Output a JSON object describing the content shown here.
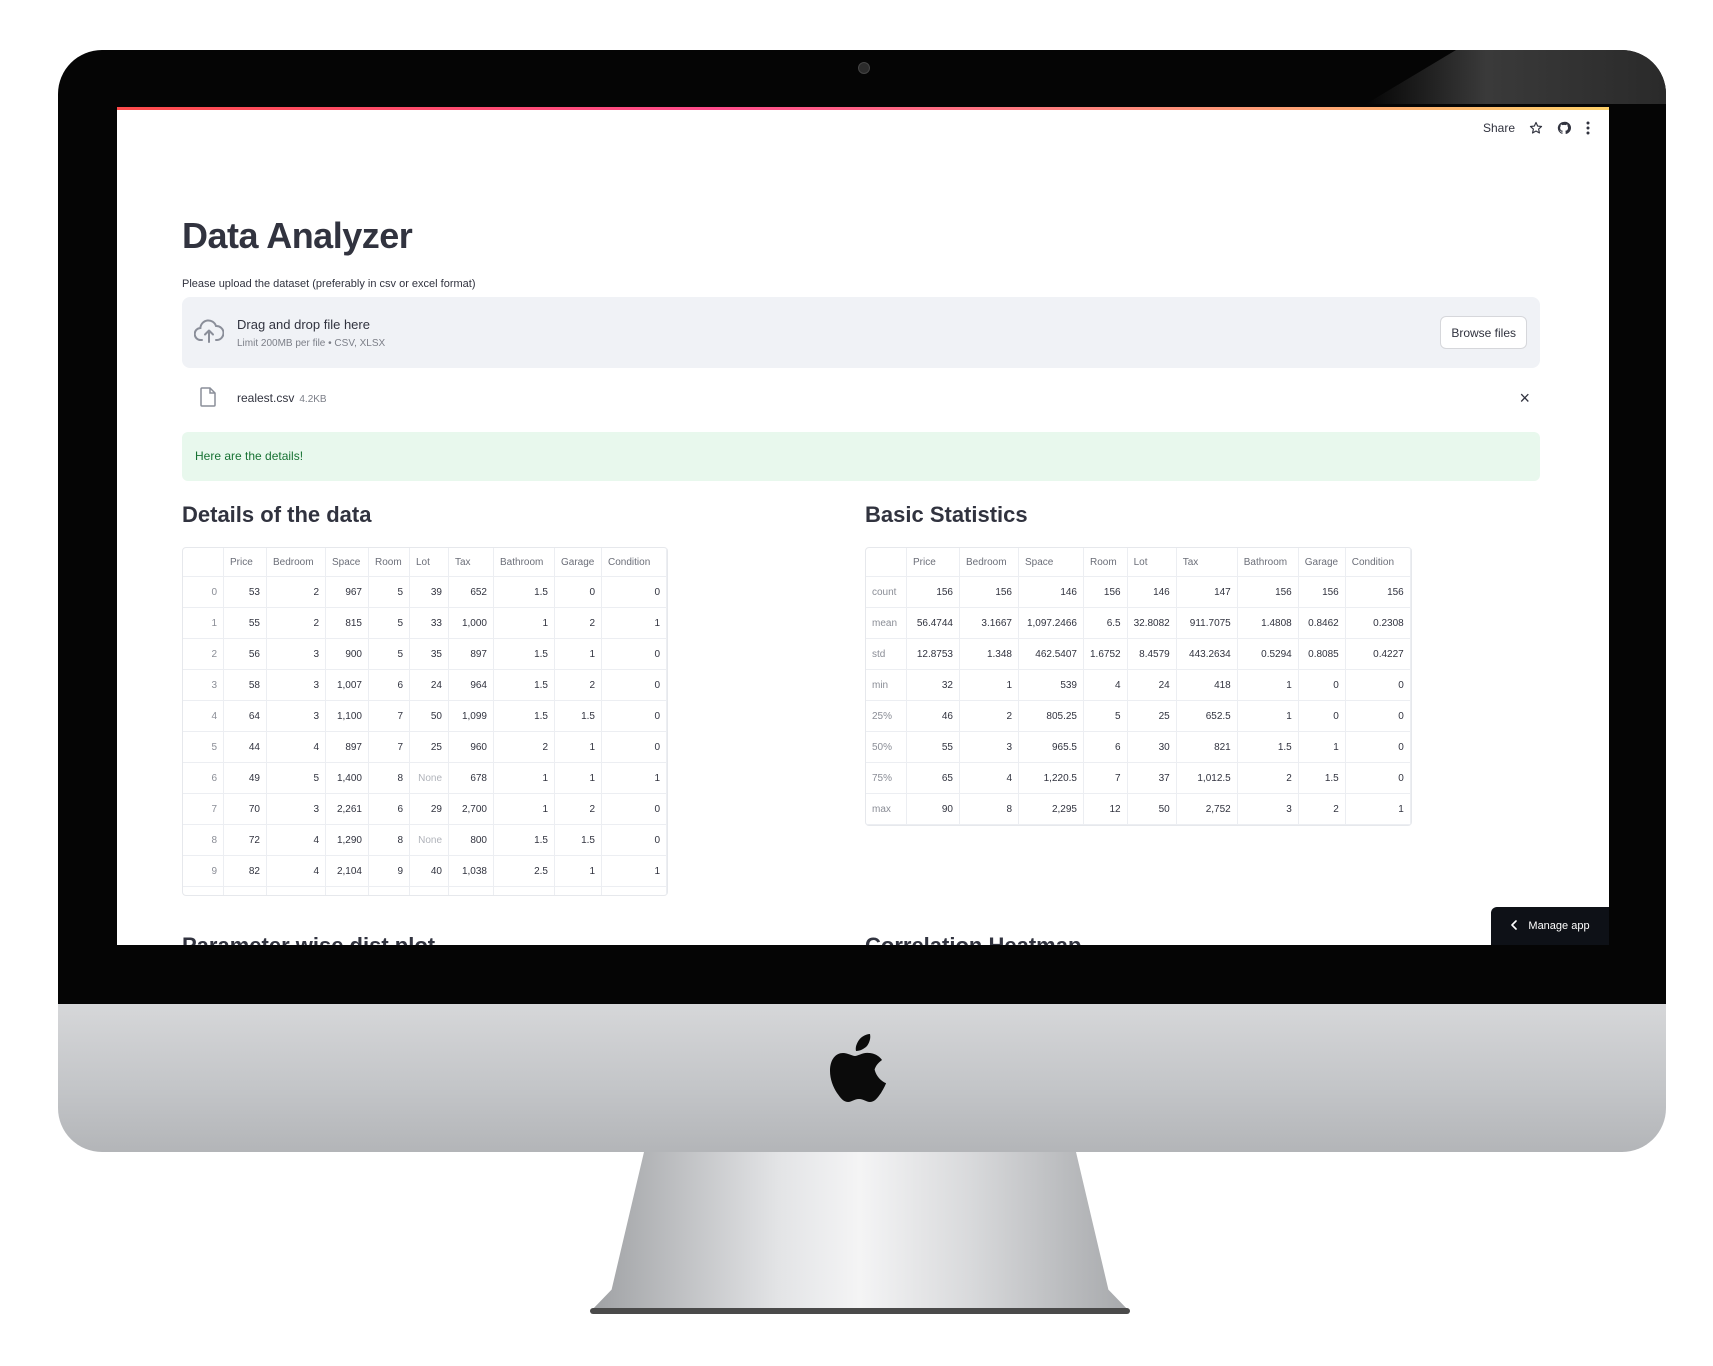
{
  "toolbar": {
    "share_label": "Share",
    "star_icon": "star-icon",
    "github_icon": "github-icon",
    "menu_icon": "more-vertical-icon"
  },
  "page": {
    "title": "Data Analyzer"
  },
  "uploader": {
    "label": "Please upload the dataset (preferably in csv or excel format)",
    "drop_text": "Drag and drop file here",
    "limit_text": "Limit 200MB per file • CSV, XLSX",
    "browse_label": "Browse files",
    "file_name": "realest.csv",
    "file_size": "4.2KB",
    "close_glyph": "×"
  },
  "success": {
    "message": "Here are the details!"
  },
  "details": {
    "heading": "Details of the data",
    "columns": [
      "",
      "Price",
      "Bedroom",
      "Space",
      "Room",
      "Lot",
      "Tax",
      "Bathroom",
      "Garage",
      "Condition"
    ],
    "rows": [
      [
        "0",
        "53",
        "2",
        "967",
        "5",
        "39",
        "652",
        "1.5",
        "0",
        "0"
      ],
      [
        "1",
        "55",
        "2",
        "815",
        "5",
        "33",
        "1,000",
        "1",
        "2",
        "1"
      ],
      [
        "2",
        "56",
        "3",
        "900",
        "5",
        "35",
        "897",
        "1.5",
        "1",
        "0"
      ],
      [
        "3",
        "58",
        "3",
        "1,007",
        "6",
        "24",
        "964",
        "1.5",
        "2",
        "0"
      ],
      [
        "4",
        "64",
        "3",
        "1,100",
        "7",
        "50",
        "1,099",
        "1.5",
        "1.5",
        "0"
      ],
      [
        "5",
        "44",
        "4",
        "897",
        "7",
        "25",
        "960",
        "2",
        "1",
        "0"
      ],
      [
        "6",
        "49",
        "5",
        "1,400",
        "8",
        "None",
        "678",
        "1",
        "1",
        "1"
      ],
      [
        "7",
        "70",
        "3",
        "2,261",
        "6",
        "29",
        "2,700",
        "1",
        "2",
        "0"
      ],
      [
        "8",
        "72",
        "4",
        "1,290",
        "8",
        "None",
        "800",
        "1.5",
        "1.5",
        "0"
      ],
      [
        "9",
        "82",
        "4",
        "2,104",
        "9",
        "40",
        "1,038",
        "2.5",
        "1",
        "1"
      ]
    ]
  },
  "stats": {
    "heading": "Basic Statistics",
    "columns": [
      "",
      "Price",
      "Bedroom",
      "Space",
      "Room",
      "Lot",
      "Tax",
      "Bathroom",
      "Garage",
      "Condition"
    ],
    "rows": [
      [
        "count",
        "156",
        "156",
        "146",
        "156",
        "146",
        "147",
        "156",
        "156",
        "156"
      ],
      [
        "mean",
        "56.4744",
        "3.1667",
        "1,097.2466",
        "6.5",
        "32.8082",
        "911.7075",
        "1.4808",
        "0.8462",
        "0.2308"
      ],
      [
        "std",
        "12.8753",
        "1.348",
        "462.5407",
        "1.6752",
        "8.4579",
        "443.2634",
        "0.5294",
        "0.8085",
        "0.4227"
      ],
      [
        "min",
        "32",
        "1",
        "539",
        "4",
        "24",
        "418",
        "1",
        "0",
        "0"
      ],
      [
        "25%",
        "46",
        "2",
        "805.25",
        "5",
        "25",
        "652.5",
        "1",
        "0",
        "0"
      ],
      [
        "50%",
        "55",
        "3",
        "965.5",
        "6",
        "30",
        "821",
        "1.5",
        "1",
        "0"
      ],
      [
        "75%",
        "65",
        "4",
        "1,220.5",
        "7",
        "37",
        "1,012.5",
        "2",
        "1.5",
        "0"
      ],
      [
        "max",
        "90",
        "8",
        "2,295",
        "12",
        "50",
        "2,752",
        "3",
        "2",
        "1"
      ]
    ]
  },
  "sections": {
    "dist_heading": "Parameter wise dist plot",
    "heatmap_heading": "Correlation Heatmap"
  },
  "manage": {
    "label": "Manage app"
  }
}
